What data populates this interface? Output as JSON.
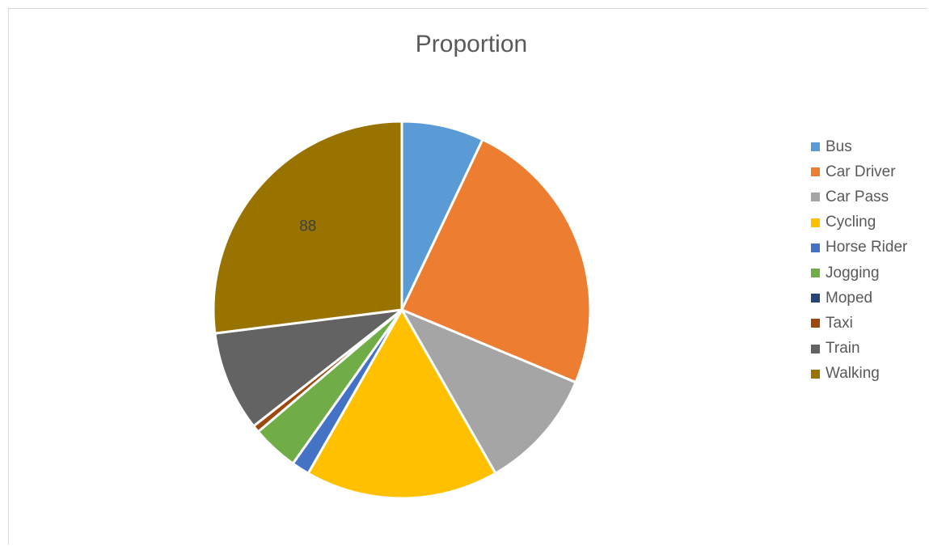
{
  "chart_data": {
    "type": "pie",
    "title": "Proportion",
    "legend_position": "right",
    "categories": [
      "Bus",
      "Car Driver",
      "Car Pass",
      "Cycling",
      "Horse Rider",
      "Jogging",
      "Moped",
      "Taxi",
      "Train",
      "Walking"
    ],
    "values": [
      23,
      79,
      34,
      54,
      5,
      13,
      0,
      2,
      28,
      88
    ],
    "colors": [
      "#5b9bd5",
      "#ed7d31",
      "#a5a5a5",
      "#ffc000",
      "#4472c4",
      "#70ad47",
      "#264478",
      "#9e480e",
      "#636363",
      "#997300"
    ],
    "data_labels": [
      "",
      "",
      "",
      "",
      "",
      "",
      "",
      "",
      "",
      "88"
    ]
  }
}
